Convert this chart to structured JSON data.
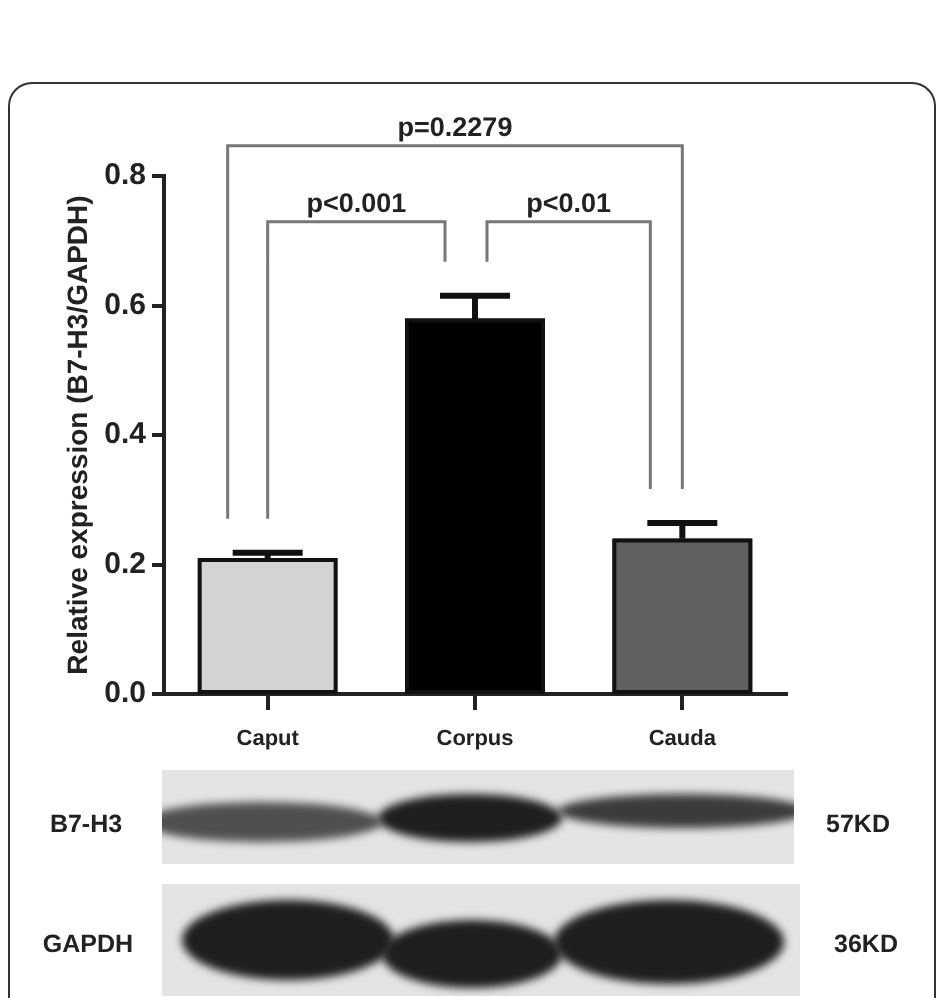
{
  "chart_data": {
    "type": "bar",
    "ylabel": "Relative expression (B7-H3/GAPDH)",
    "categories": [
      "Caput",
      "Corpus",
      "Cauda"
    ],
    "values": [
      0.21,
      0.58,
      0.24
    ],
    "colors": [
      "#d3d3d3",
      "#000000",
      "#606060"
    ],
    "errors": [
      0.008,
      0.035,
      0.024
    ],
    "ylim": [
      0,
      0.8
    ],
    "yticks": [
      {
        "value": 0,
        "label": "0.0"
      },
      0.2,
      0.4,
      0.6,
      0.8
    ],
    "grid": false,
    "annotations": [
      "p=0.2279",
      "p<0.001",
      "p<0.01",
      "B7-H3",
      "57KD",
      "GAPDH",
      "36KD"
    ]
  }
}
